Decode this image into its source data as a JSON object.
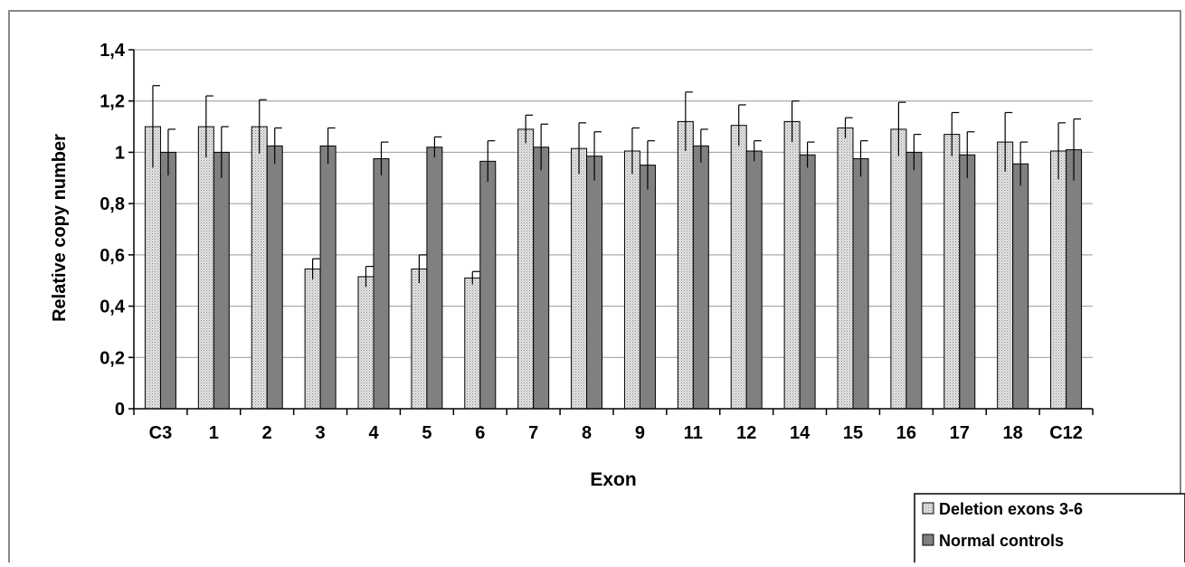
{
  "chart_data": {
    "type": "bar",
    "xlabel": "Exon",
    "ylabel": "Relative copy number",
    "ylim": [
      0,
      1.4
    ],
    "yticks": [
      "0",
      "0,2",
      "0,4",
      "0,6",
      "0,8",
      "1",
      "1,2",
      "1,4"
    ],
    "ytick_values": [
      0,
      0.2,
      0.4,
      0.6,
      0.8,
      1.0,
      1.2,
      1.4
    ],
    "grid": true,
    "legend_position": "bottom-right",
    "categories": [
      "C3",
      "1",
      "2",
      "3",
      "4",
      "5",
      "6",
      "7",
      "8",
      "9",
      "11",
      "12",
      "14",
      "15",
      "16",
      "17",
      "18",
      "C12"
    ],
    "series": [
      {
        "name": "Deletion exons 3-6",
        "pattern": "dotted-light",
        "values": [
          1.1,
          1.1,
          1.1,
          0.545,
          0.515,
          0.545,
          0.51,
          1.09,
          1.015,
          1.005,
          1.12,
          1.105,
          1.12,
          1.095,
          1.09,
          1.07,
          1.04,
          1.005
        ],
        "errors": [
          0.16,
          0.12,
          0.105,
          0.04,
          0.04,
          0.055,
          0.025,
          0.055,
          0.1,
          0.09,
          0.115,
          0.08,
          0.08,
          0.04,
          0.105,
          0.085,
          0.115,
          0.11
        ]
      },
      {
        "name": "Normal controls",
        "pattern": "dark",
        "values": [
          1.0,
          1.0,
          1.025,
          1.025,
          0.975,
          1.02,
          0.965,
          1.02,
          0.985,
          0.95,
          1.025,
          1.005,
          0.99,
          0.975,
          1.0,
          0.99,
          0.955,
          1.01
        ],
        "errors": [
          0.09,
          0.1,
          0.07,
          0.07,
          0.065,
          0.04,
          0.08,
          0.09,
          0.095,
          0.095,
          0.065,
          0.04,
          0.05,
          0.07,
          0.07,
          0.09,
          0.085,
          0.12
        ]
      }
    ]
  }
}
